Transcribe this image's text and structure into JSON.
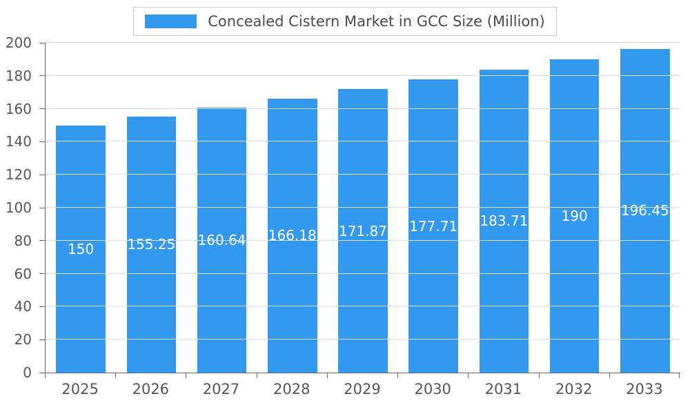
{
  "chart_data": {
    "type": "bar",
    "title": "Concealed Cistern Market in GCC Size (Million)",
    "categories": [
      "2025",
      "2026",
      "2027",
      "2028",
      "2029",
      "2030",
      "2031",
      "2032",
      "2033"
    ],
    "values": [
      150,
      155.25,
      160.64,
      166.18,
      171.87,
      177.71,
      183.71,
      190,
      196.45
    ],
    "value_labels": [
      "150",
      "155.25",
      "160.64",
      "166.18",
      "171.87",
      "177.71",
      "183.71",
      "190",
      "196.45"
    ],
    "xlabel": "",
    "ylabel": "",
    "ylim": [
      0,
      200
    ],
    "yticks": [
      0,
      20,
      40,
      60,
      80,
      100,
      120,
      140,
      160,
      180,
      200
    ],
    "grid": "horizontal",
    "legend_position": "top",
    "colors": {
      "bar": "#3399ee",
      "bar_label_text": "#ffffff",
      "axis_text": "#555555",
      "legend_text": "#4a4a4a",
      "gridline": "#e0e0e0",
      "axis_line": "#666666",
      "legend_border": "#cccccc",
      "background": "#ffffff"
    }
  }
}
